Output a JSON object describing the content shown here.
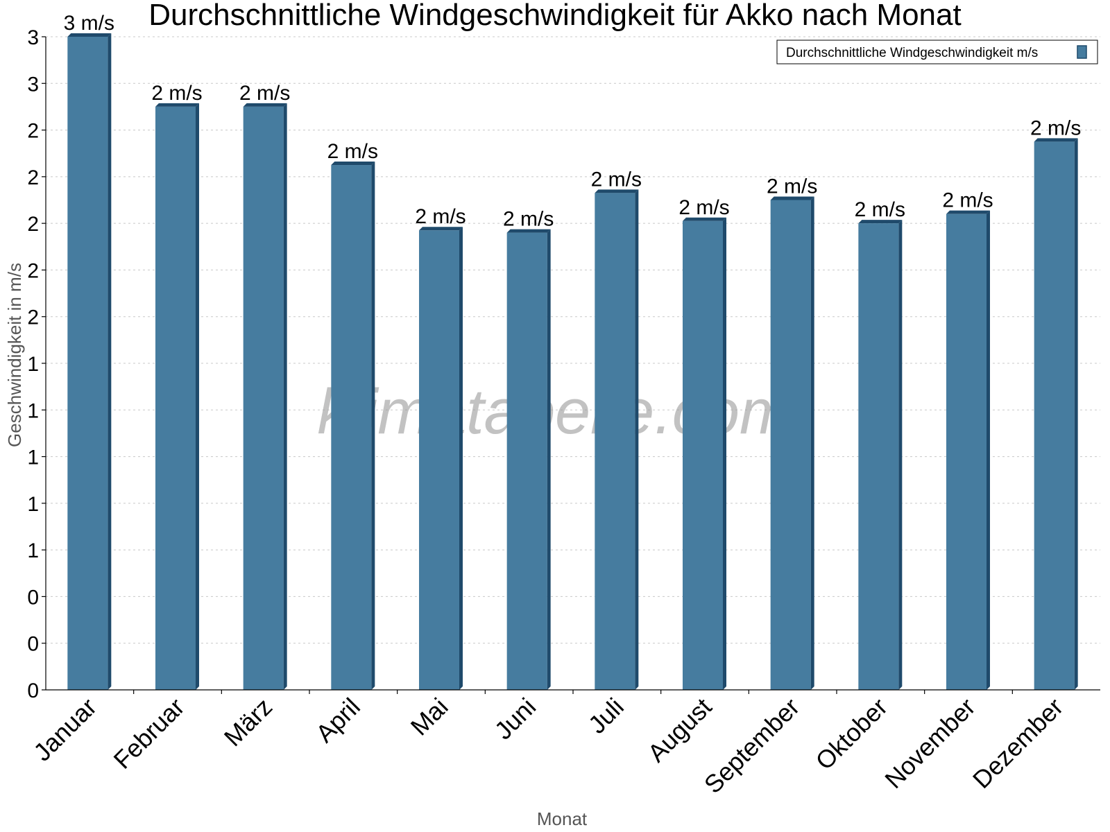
{
  "chart_data": {
    "type": "bar",
    "title": "Durchschnittliche Windgeschwindigkeit für Akko nach Monat",
    "xlabel": "Monat",
    "ylabel": "Geschwindigkeit in m/s",
    "categories": [
      "Januar",
      "Februar",
      "März",
      "April",
      "Mai",
      "Juni",
      "Juli",
      "August",
      "September",
      "Oktober",
      "November",
      "Dezember"
    ],
    "series": [
      {
        "name": "Durchschnittliche Windgeschwindigkeit m/s",
        "values": [
          2.8,
          2.5,
          2.5,
          2.25,
          1.97,
          1.96,
          2.13,
          2.01,
          2.1,
          2.0,
          2.04,
          2.35
        ],
        "labels": [
          "3 m/s",
          "2 m/s",
          "2 m/s",
          "2 m/s",
          "2 m/s",
          "2 m/s",
          "2 m/s",
          "2 m/s",
          "2 m/s",
          "2 m/s",
          "2 m/s",
          "2 m/s"
        ],
        "color": "#467c9f",
        "side_color": "#1f4a6b"
      }
    ],
    "ylim": [
      0,
      2.8
    ],
    "yticks": [
      0,
      0.2,
      0.4,
      0.6,
      0.8,
      1.0,
      1.2,
      1.4,
      1.6,
      1.8,
      2.0,
      2.2,
      2.4,
      2.6,
      2.8
    ],
    "ytick_labels": [
      "0",
      "0",
      "0",
      "1",
      "1",
      "1",
      "1",
      "1",
      "2",
      "2",
      "2",
      "2",
      "2",
      "3",
      "3"
    ],
    "grid": true,
    "legend_position": "top-right",
    "watermark": "klimatabelle.com"
  }
}
